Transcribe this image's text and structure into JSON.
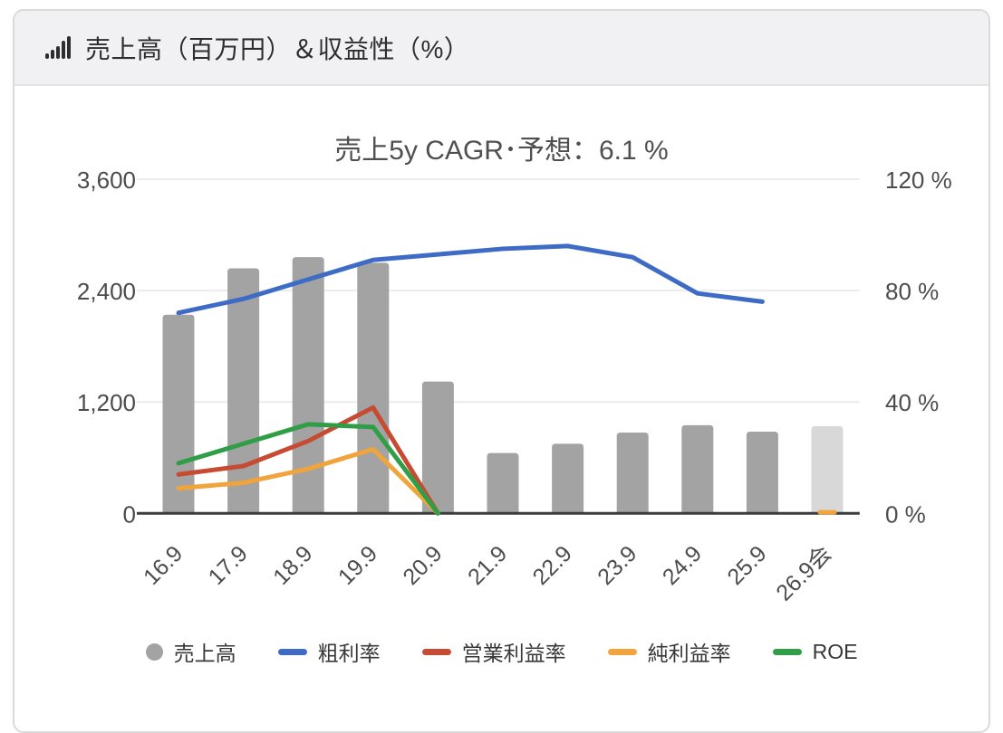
{
  "header": {
    "title": "売上高（百万円）＆収益性（%）",
    "icon": "bar-chart-icon"
  },
  "chart_data": {
    "type": "combo-bar-line",
    "title": "売上5y CAGR･予想：6.1 %",
    "categories": [
      "16.9",
      "17.9",
      "18.9",
      "19.9",
      "20.9",
      "21.9",
      "22.9",
      "23.9",
      "24.9",
      "25.9",
      "26.9会"
    ],
    "bar_series": {
      "name": "売上高",
      "axis": "left",
      "values": [
        2140,
        2640,
        2760,
        2700,
        1420,
        650,
        750,
        870,
        950,
        880,
        940
      ],
      "forecast_index": 10,
      "color": "#a3a3a3",
      "forecast_color": "#d8d8d8"
    },
    "line_series": [
      {
        "name": "粗利率",
        "axis": "right",
        "color": "#3d6bc6",
        "values": [
          72,
          77,
          84,
          91,
          93,
          95,
          96,
          92,
          79,
          76,
          null
        ]
      },
      {
        "name": "営業利益率",
        "axis": "right",
        "color": "#c74b32",
        "values": [
          14,
          17,
          26,
          38,
          0,
          null,
          null,
          null,
          null,
          null,
          null
        ]
      },
      {
        "name": "純利益率",
        "axis": "right",
        "color": "#f0a43b",
        "values": [
          9,
          11,
          16,
          23,
          0,
          null,
          null,
          null,
          null,
          null,
          0.4
        ]
      },
      {
        "name": "ROE",
        "axis": "right",
        "color": "#2f9e46",
        "values": [
          18,
          25,
          32,
          31,
          0,
          null,
          null,
          null,
          null,
          null,
          null
        ]
      }
    ],
    "left_axis": {
      "ticks": [
        "0",
        "1,200",
        "2,400",
        "3,600"
      ],
      "values": [
        0,
        1200,
        2400,
        3600
      ],
      "max": 3600
    },
    "right_axis": {
      "ticks": [
        "0 %",
        "40 %",
        "80 %",
        "120 %"
      ],
      "values": [
        0,
        40,
        80,
        120
      ],
      "max": 120
    },
    "grid": "horizontal",
    "legend_position": "bottom",
    "legend": [
      {
        "label": "売上高",
        "marker": "circle",
        "color": "#a3a3a3"
      },
      {
        "label": "粗利率",
        "marker": "line",
        "color": "#3d6bc6"
      },
      {
        "label": "営業利益率",
        "marker": "line",
        "color": "#c74b32"
      },
      {
        "label": "純利益率",
        "marker": "line",
        "color": "#f0a43b"
      },
      {
        "label": "ROE",
        "marker": "line",
        "color": "#2f9e46"
      }
    ],
    "colors": {
      "axis_line": "#3b3b3b",
      "grid_line": "#ececec",
      "tick_label": "#4c4c4c"
    }
  }
}
